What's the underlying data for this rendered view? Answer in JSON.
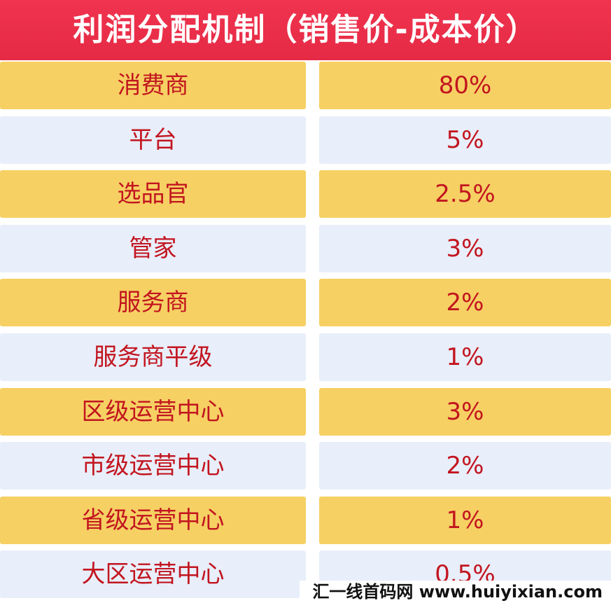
{
  "header": {
    "title": "利润分配机制（销售价-成本价）"
  },
  "table": {
    "rows": [
      [
        "消费商",
        "80%"
      ],
      [
        "平台",
        "5%"
      ],
      [
        "选品官",
        "2.5%"
      ],
      [
        "管家",
        "3%"
      ],
      [
        "服务商",
        "2%"
      ],
      [
        "服务商平级",
        "1%"
      ],
      [
        "区级运营中心",
        "3%"
      ],
      [
        "市级运营中心",
        "2%"
      ],
      [
        "省级运营中心",
        "1%"
      ],
      [
        "大区运营中心",
        "0.5%"
      ]
    ]
  },
  "watermark": "汇一线首码网 www.huiyixian.com"
}
